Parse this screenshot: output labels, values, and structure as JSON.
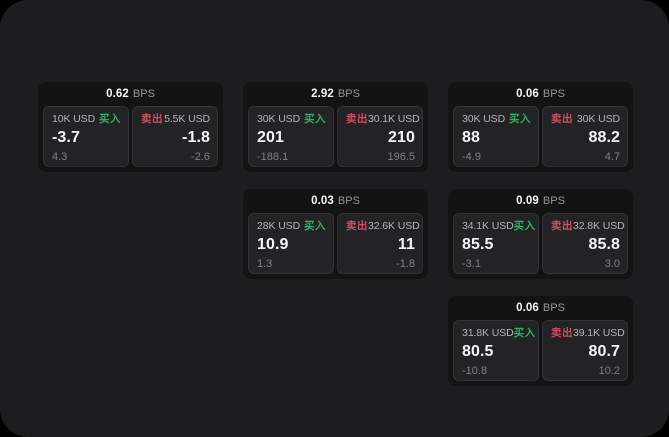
{
  "window": {
    "bps_unit": "BPS",
    "buy_label": "买入",
    "sell_label": "卖出"
  },
  "colors": {
    "outer_background": "#000000",
    "panel_background": "#1d1d1f",
    "card_background": "#131314",
    "pane_background": "#232326",
    "pane_border": "#323236",
    "buy_green": "#2eb05f",
    "sell_red": "#cd4f60",
    "value_white": "#f5f5f7",
    "amount_gray": "#b4b4b9",
    "delta_gray": "#7f7f85",
    "bps_unit_gray": "#96969b"
  },
  "cards": [
    {
      "bps": "0.62",
      "row": 0,
      "col": 0,
      "buy": {
        "amount": "10K USD",
        "value": "-3.7",
        "delta": "4.3"
      },
      "sell": {
        "amount": "5.5K USD",
        "value": "-1.8",
        "delta": "-2.6"
      }
    },
    {
      "bps": "2.92",
      "row": 0,
      "col": 1,
      "buy": {
        "amount": "30K USD",
        "value": "201",
        "delta": "-188.1"
      },
      "sell": {
        "amount": "30.1K USD",
        "value": "210",
        "delta": "196.5"
      }
    },
    {
      "bps": "0.06",
      "row": 0,
      "col": 2,
      "buy": {
        "amount": "30K USD",
        "value": "88",
        "delta": "-4.9"
      },
      "sell": {
        "amount": "30K USD",
        "value": "88.2",
        "delta": "4.7"
      }
    },
    {
      "bps": "0.03",
      "row": 1,
      "col": 1,
      "buy": {
        "amount": "28K USD",
        "value": "10.9",
        "delta": "1.3"
      },
      "sell": {
        "amount": "32.6K USD",
        "value": "11",
        "delta": "-1.8"
      }
    },
    {
      "bps": "0.09",
      "row": 1,
      "col": 2,
      "buy": {
        "amount": "34.1K USD",
        "value": "85.5",
        "delta": "-3.1"
      },
      "sell": {
        "amount": "32.8K USD",
        "value": "85.8",
        "delta": "3.0"
      }
    },
    {
      "bps": "0.06",
      "row": 2,
      "col": 2,
      "buy": {
        "amount": "31.8K USD",
        "value": "80.5",
        "delta": "-10.8"
      },
      "sell": {
        "amount": "39.1K USD",
        "value": "80.7",
        "delta": "10.2"
      }
    }
  ]
}
